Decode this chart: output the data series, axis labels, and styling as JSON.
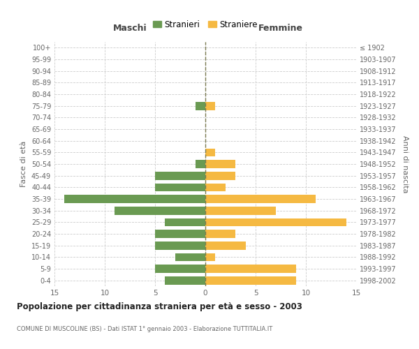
{
  "age_groups": [
    "0-4",
    "5-9",
    "10-14",
    "15-19",
    "20-24",
    "25-29",
    "30-34",
    "35-39",
    "40-44",
    "45-49",
    "50-54",
    "55-59",
    "60-64",
    "65-69",
    "70-74",
    "75-79",
    "80-84",
    "85-89",
    "90-94",
    "95-99",
    "100+"
  ],
  "birth_years": [
    "1998-2002",
    "1993-1997",
    "1988-1992",
    "1983-1987",
    "1978-1982",
    "1973-1977",
    "1968-1972",
    "1963-1967",
    "1958-1962",
    "1953-1957",
    "1948-1952",
    "1943-1947",
    "1938-1942",
    "1933-1937",
    "1928-1932",
    "1923-1927",
    "1918-1922",
    "1913-1917",
    "1908-1912",
    "1903-1907",
    "≤ 1902"
  ],
  "maschi": [
    4,
    5,
    3,
    5,
    5,
    4,
    9,
    14,
    5,
    5,
    1,
    0,
    0,
    0,
    0,
    1,
    0,
    0,
    0,
    0,
    0
  ],
  "femmine": [
    9,
    9,
    1,
    4,
    3,
    14,
    7,
    11,
    2,
    3,
    3,
    1,
    0,
    0,
    0,
    1,
    0,
    0,
    0,
    0,
    0
  ],
  "color_maschi": "#6a9a52",
  "color_femmine": "#f5b942",
  "title": "Popolazione per cittadinanza straniera per età e sesso - 2003",
  "subtitle": "COMUNE DI MUSCOLINE (BS) - Dati ISTAT 1° gennaio 2003 - Elaborazione TUTTITALIA.IT",
  "ylabel_left": "Fasce di età",
  "ylabel_right": "Anni di nascita",
  "xlabel_maschi": "Maschi",
  "xlabel_femmine": "Femmine",
  "legend_stranieri": "Stranieri",
  "legend_straniere": "Straniere",
  "xlim": 15,
  "background_color": "#ffffff",
  "grid_color": "#cccccc",
  "dashed_line_color": "#7a7a50"
}
